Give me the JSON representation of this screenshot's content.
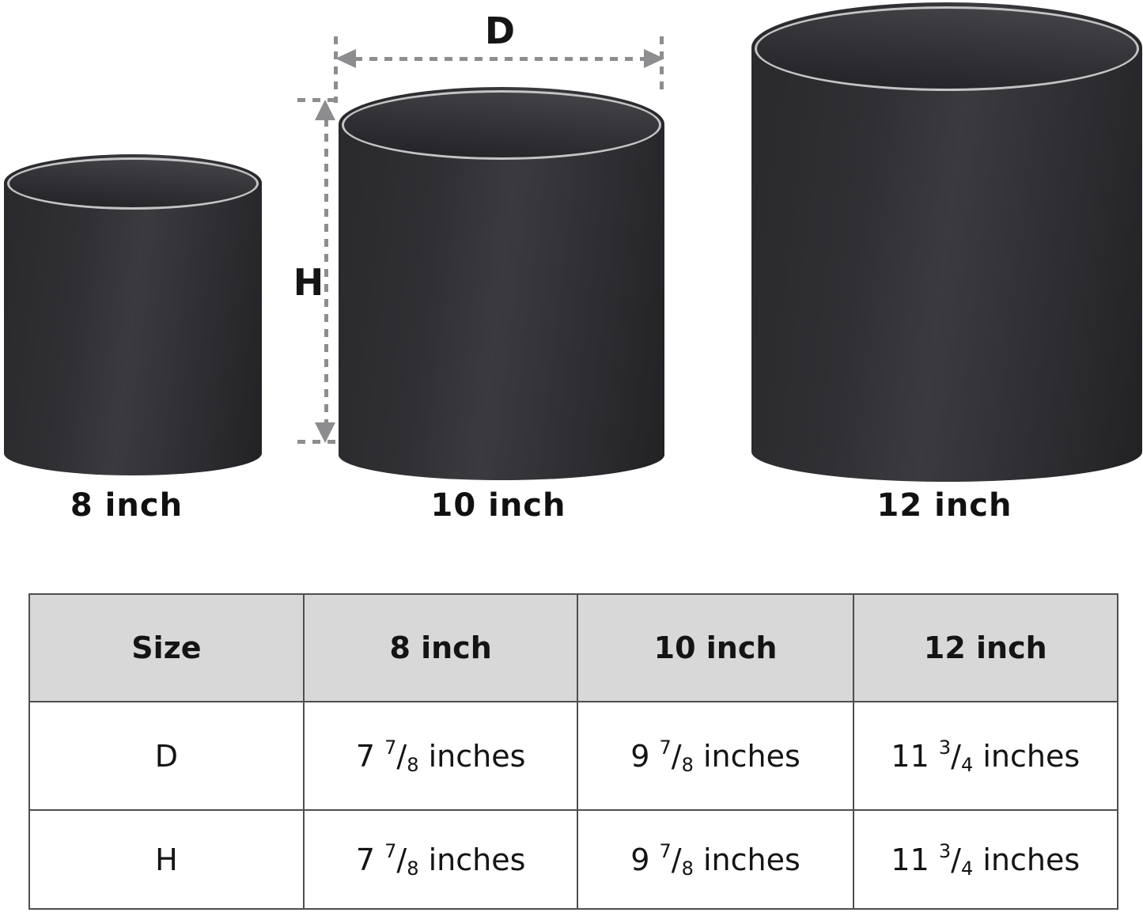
{
  "diagram": {
    "d_label": "D",
    "h_label": "H",
    "pot_labels": [
      "8 inch",
      "10 inch",
      "12 inch"
    ]
  },
  "colors": {
    "background": "#ffffff",
    "pot_body": "#2e2e31",
    "pot_cavity": "#353539",
    "pot_rim_line": "#c3c4c6",
    "annotation_gray": "#8d8d8f",
    "table_header_bg": "#d8d8d8",
    "table_border": "#4f4f4f",
    "text": "#141414"
  },
  "table": {
    "headers": [
      "Size",
      "8 inch",
      "10 inch",
      "12 inch"
    ],
    "rows": [
      {
        "label": "D",
        "cells": [
          {
            "whole": "7",
            "num": "7",
            "slash": "/",
            "den": "8",
            "unit": "inches"
          },
          {
            "whole": "9",
            "num": "7",
            "slash": "/",
            "den": "8",
            "unit": "inches"
          },
          {
            "whole": "11",
            "num": "3",
            "slash": "/",
            "den": "4",
            "unit": "inches"
          }
        ]
      },
      {
        "label": "H",
        "cells": [
          {
            "whole": "7",
            "num": "7",
            "slash": "/",
            "den": "8",
            "unit": "inches"
          },
          {
            "whole": "9",
            "num": "7",
            "slash": "/",
            "den": "8",
            "unit": "inches"
          },
          {
            "whole": "11",
            "num": "3",
            "slash": "/",
            "den": "4",
            "unit": "inches"
          }
        ]
      }
    ]
  }
}
